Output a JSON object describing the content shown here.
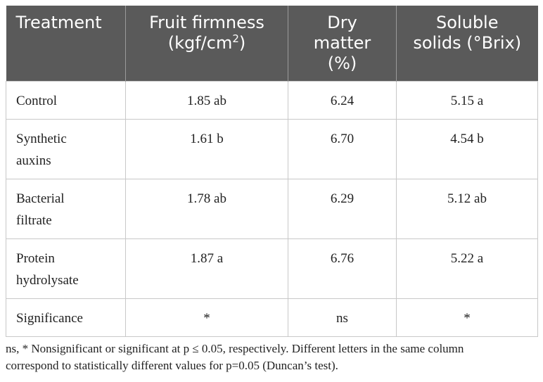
{
  "table": {
    "headers": [
      {
        "line1": "Treatment",
        "line2": "",
        "line3": ""
      },
      {
        "line1": "Fruit firmness",
        "line2": "(kgf/cm",
        "sup": "2",
        "line2_end": ")",
        "line3": ""
      },
      {
        "line1": "Dry",
        "line2": "matter",
        "line3": "(%)"
      },
      {
        "line1": "Soluble",
        "line2": "solids (°Brix)",
        "line3": ""
      }
    ],
    "rows": [
      {
        "treatment_l1": "Control",
        "treatment_l2": "",
        "firmness": "1.85 ab",
        "dry_matter": "6.24",
        "soluble_solids": "5.15 a"
      },
      {
        "treatment_l1": "Synthetic",
        "treatment_l2": "auxins",
        "firmness": "1.61 b",
        "dry_matter": "6.70",
        "soluble_solids": "4.54 b"
      },
      {
        "treatment_l1": "Bacterial",
        "treatment_l2": "filtrate",
        "firmness": "1.78 ab",
        "dry_matter": "6.29",
        "soluble_solids": "5.12 ab"
      },
      {
        "treatment_l1": "Protein",
        "treatment_l2": "hydrolysate",
        "firmness": "1.87 a",
        "dry_matter": "6.76",
        "soluble_solids": "5.22 a"
      },
      {
        "treatment_l1": "Significance",
        "treatment_l2": "",
        "firmness": "*",
        "dry_matter": "ns",
        "soluble_solids": "*"
      }
    ]
  },
  "footnote": {
    "line1": "ns, * Nonsignificant or significant at p ≤ 0.05, respectively. Different letters in the same column",
    "line2": "correspond to statistically different values for p=0.05 (Duncan’s test)."
  }
}
